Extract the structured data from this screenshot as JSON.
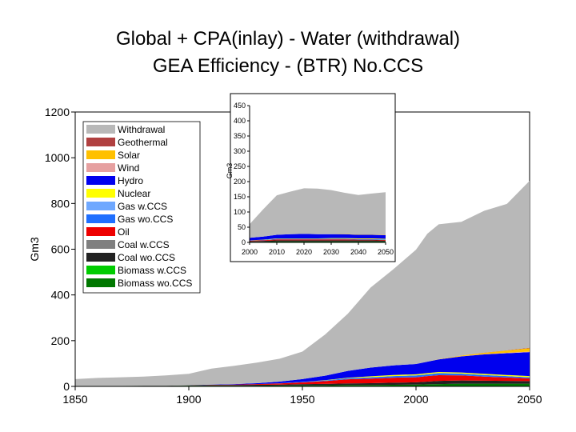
{
  "title": {
    "line1": "Global + CPA(inlay) - Water (withdrawal)",
    "line2": "GEA Efficiency - (BTR) No.CCS"
  },
  "chart_data": [
    {
      "type": "area",
      "stacked": true,
      "ylabel": "Gm3",
      "xlabel": "",
      "xlim": [
        1850,
        2050
      ],
      "ylim": [
        0,
        1200
      ],
      "x_ticks": [
        "1850",
        "1900",
        "1950",
        "2000",
        "2050"
      ],
      "y_ticks": [
        "0",
        "200",
        "400",
        "600",
        "800",
        "1000",
        "1200"
      ],
      "legend_position": "top-left",
      "x": [
        1850,
        1860,
        1870,
        1880,
        1890,
        1900,
        1910,
        1920,
        1930,
        1940,
        1950,
        1960,
        1970,
        1980,
        1990,
        2000,
        2005,
        2010,
        2020,
        2030,
        2040,
        2050
      ],
      "series": [
        {
          "name": "Biomass wo.CCS",
          "color": "#007700",
          "values": [
            2,
            2,
            2,
            2,
            2,
            3,
            3,
            3,
            3,
            4,
            5,
            5,
            6,
            6,
            7,
            8,
            9,
            10,
            12,
            12,
            12,
            12
          ]
        },
        {
          "name": "Biomass w.CCS",
          "color": "#00cc00",
          "values": [
            0,
            0,
            0,
            0,
            0,
            0,
            0,
            0,
            0,
            0,
            0,
            0,
            0,
            0,
            0,
            0,
            0,
            0,
            0,
            0,
            0,
            0
          ]
        },
        {
          "name": "Coal wo.CCS",
          "color": "#222222",
          "values": [
            0,
            0,
            0,
            1,
            1,
            2,
            3,
            3,
            4,
            4,
            5,
            6,
            7,
            8,
            9,
            10,
            12,
            14,
            14,
            13,
            12,
            11
          ]
        },
        {
          "name": "Coal w.CCS",
          "color": "#808080",
          "values": [
            0,
            0,
            0,
            0,
            0,
            0,
            0,
            0,
            0,
            0,
            0,
            0,
            0,
            0,
            0,
            0,
            0,
            0,
            0,
            0,
            0,
            0
          ]
        },
        {
          "name": "Oil",
          "color": "#ee0000",
          "values": [
            0,
            0,
            0,
            0,
            0,
            0,
            1,
            2,
            3,
            5,
            8,
            12,
            18,
            20,
            22,
            22,
            24,
            25,
            22,
            18,
            15,
            12
          ]
        },
        {
          "name": "Gas wo.CCS",
          "color": "#1f6fff",
          "values": [
            0,
            0,
            0,
            0,
            0,
            0,
            0,
            0,
            0,
            1,
            2,
            3,
            5,
            6,
            7,
            8,
            8,
            9,
            8,
            7,
            6,
            5
          ]
        },
        {
          "name": "Gas w.CCS",
          "color": "#6fa8ff",
          "values": [
            0,
            0,
            0,
            0,
            0,
            0,
            0,
            0,
            0,
            0,
            0,
            0,
            0,
            0,
            0,
            0,
            0,
            0,
            0,
            0,
            0,
            0
          ]
        },
        {
          "name": "Nuclear",
          "color": "#ffff00",
          "values": [
            0,
            0,
            0,
            0,
            0,
            0,
            0,
            0,
            0,
            0,
            0,
            1,
            2,
            4,
            5,
            5,
            5,
            5,
            5,
            5,
            5,
            5
          ]
        },
        {
          "name": "Hydro",
          "color": "#0000ee",
          "values": [
            0,
            0,
            0,
            0,
            0,
            0,
            1,
            2,
            4,
            7,
            12,
            20,
            30,
            38,
            42,
            45,
            50,
            55,
            70,
            85,
            95,
            105
          ]
        },
        {
          "name": "Wind",
          "color": "#e6a0a0",
          "values": [
            0,
            0,
            0,
            0,
            0,
            0,
            0,
            0,
            0,
            0,
            0,
            0,
            0,
            0,
            0,
            0,
            0,
            0,
            1,
            1,
            2,
            2
          ]
        },
        {
          "name": "Solar",
          "color": "#ffc000",
          "values": [
            0,
            0,
            0,
            0,
            0,
            0,
            0,
            0,
            0,
            0,
            0,
            0,
            0,
            0,
            0,
            0,
            0,
            1,
            3,
            6,
            10,
            15
          ]
        },
        {
          "name": "Geothermal",
          "color": "#b04040",
          "values": [
            0,
            0,
            0,
            0,
            0,
            0,
            0,
            0,
            0,
            0,
            0,
            0,
            0,
            0,
            0,
            0,
            0,
            0,
            0,
            1,
            1,
            2
          ]
        },
        {
          "name": "Withdrawal",
          "color": "#b8b8b8",
          "values": [
            30,
            35,
            38,
            40,
            45,
            50,
            70,
            80,
            90,
            100,
            120,
            180,
            250,
            350,
            420,
            500,
            560,
            590,
            585,
            620,
            640,
            730
          ]
        }
      ]
    },
    {
      "type": "area",
      "stacked": true,
      "ylabel": "Gm3",
      "xlim": [
        2000,
        2050
      ],
      "ylim": [
        0,
        450
      ],
      "x_ticks": [
        "2000",
        "2010",
        "2020",
        "2030",
        "2040",
        "2050"
      ],
      "y_ticks": [
        "0",
        "50",
        "100",
        "150",
        "200",
        "250",
        "300",
        "350",
        "400",
        "450"
      ],
      "x": [
        2000,
        2005,
        2010,
        2015,
        2020,
        2025,
        2030,
        2035,
        2040,
        2045,
        2050
      ],
      "series": [
        {
          "name": "Biomass wo.CCS",
          "color": "#007700",
          "values": [
            2,
            2,
            3,
            3,
            3,
            3,
            3,
            3,
            3,
            3,
            3
          ]
        },
        {
          "name": "Coal wo.CCS",
          "color": "#222222",
          "values": [
            2,
            3,
            4,
            4,
            4,
            4,
            4,
            4,
            4,
            4,
            3
          ]
        },
        {
          "name": "Oil",
          "color": "#ee0000",
          "values": [
            2,
            2,
            3,
            3,
            3,
            3,
            3,
            3,
            2,
            2,
            2
          ]
        },
        {
          "name": "Gas wo.CCS",
          "color": "#1f6fff",
          "values": [
            1,
            1,
            2,
            2,
            2,
            2,
            2,
            2,
            2,
            2,
            2
          ]
        },
        {
          "name": "Nuclear",
          "color": "#ffff00",
          "values": [
            0,
            1,
            1,
            1,
            1,
            1,
            2,
            2,
            2,
            2,
            2
          ]
        },
        {
          "name": "Hydro",
          "color": "#0000ee",
          "values": [
            8,
            10,
            12,
            14,
            15,
            14,
            13,
            13,
            12,
            12,
            12
          ]
        },
        {
          "name": "Solar",
          "color": "#ffc000",
          "values": [
            0,
            0,
            0,
            0,
            0,
            0,
            0,
            1,
            1,
            1,
            1
          ]
        },
        {
          "name": "Withdrawal",
          "color": "#b8b8b8",
          "values": [
            45,
            90,
            130,
            140,
            150,
            150,
            145,
            135,
            130,
            135,
            140
          ]
        }
      ]
    }
  ]
}
